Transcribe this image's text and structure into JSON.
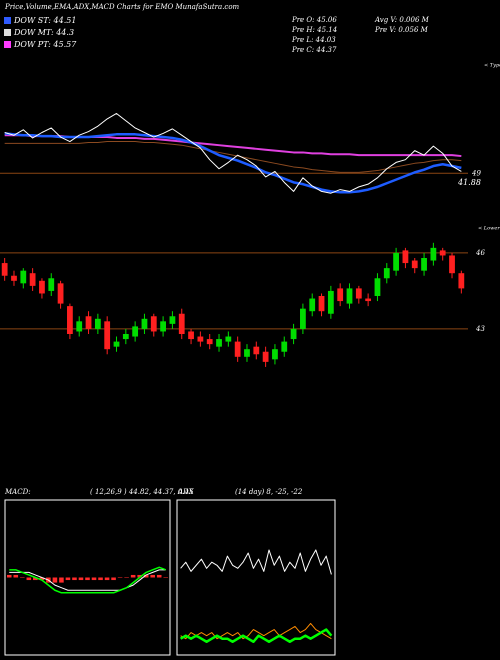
{
  "header": {
    "title": "Price,Volume,EMA,ADX,MACD Charts for EMO MunafaSutra.com",
    "legend": [
      {
        "label": "DOW ST: 44.51",
        "color": "#2f5bff"
      },
      {
        "label": "DOW MT: 44.3",
        "color": "#dddddd"
      },
      {
        "label": "DOW PT: 45.57",
        "color": "#ff3cff"
      }
    ],
    "stats": [
      "Pre O: 45.06",
      "Avg V: 0.006  M",
      "Pre H: 45.14",
      "Pre V: 0.056  M",
      "Pre L: 44.03",
      "Pre C: 44.37"
    ]
  },
  "chart_data": [
    {
      "type": "line",
      "label": "< Type",
      "annotation": "41.88",
      "ylim": [
        45.5,
        61.5
      ],
      "yticks": [
        49
      ],
      "grid": true,
      "grid_color": "#8b4513",
      "series": [
        {
          "color": "#8b4a20",
          "width": 1,
          "values": [
            52.3,
            52.3,
            52.3,
            52.3,
            52.3,
            52.3,
            52.3,
            52.3,
            52.3,
            52.4,
            52.4,
            52.5,
            52.5,
            52.5,
            52.5,
            52.4,
            52.4,
            52.3,
            52.2,
            52.1,
            51.9,
            51.7,
            51.5,
            51.3,
            51.1,
            50.9,
            50.7,
            50.5,
            50.3,
            50.1,
            49.9,
            49.7,
            49.6,
            49.4,
            49.3,
            49.2,
            49.1,
            49.1,
            49.1,
            49.2,
            49.3,
            49.5,
            49.7,
            49.9,
            50.1,
            50.2,
            50.4,
            50.5,
            50.5,
            50.4
          ]
        },
        {
          "color": "#e040e0",
          "width": 2,
          "values": [
            53.2,
            53.2,
            53.2,
            53.1,
            53.1,
            53.1,
            53.1,
            53.0,
            53.0,
            53.0,
            53.0,
            53.0,
            52.9,
            52.9,
            52.9,
            52.8,
            52.8,
            52.7,
            52.6,
            52.5,
            52.4,
            52.3,
            52.2,
            52.1,
            52.0,
            51.9,
            51.8,
            51.7,
            51.6,
            51.5,
            51.4,
            51.3,
            51.3,
            51.2,
            51.2,
            51.1,
            51.1,
            51.1,
            51.0,
            51.0,
            51.0,
            51.0,
            51.0,
            51.0,
            51.0,
            51.0,
            51.0,
            51.0,
            51.0,
            50.9
          ]
        },
        {
          "color": "#1e5cff",
          "width": 2.5,
          "values": [
            53.4,
            53.3,
            53.2,
            53.2,
            53.1,
            53.1,
            53.0,
            53.0,
            53.0,
            53.0,
            53.1,
            53.2,
            53.3,
            53.3,
            53.3,
            53.2,
            53.1,
            53.0,
            52.9,
            52.7,
            52.4,
            52.0,
            51.5,
            51.0,
            50.7,
            50.4,
            50.0,
            49.6,
            49.1,
            48.8,
            48.4,
            48.0,
            47.8,
            47.5,
            47.2,
            47.0,
            46.9,
            46.9,
            47.0,
            47.2,
            47.5,
            47.9,
            48.3,
            48.7,
            49.1,
            49.4,
            49.8,
            50.0,
            49.8,
            49.6
          ]
        },
        {
          "color": "#ffffff",
          "width": 1,
          "values": [
            53.5,
            53.2,
            53.8,
            52.9,
            53.5,
            54.0,
            53.0,
            52.5,
            53.2,
            53.6,
            54.2,
            55.0,
            55.6,
            54.8,
            54.0,
            53.5,
            53.0,
            53.4,
            53.9,
            53.2,
            52.5,
            51.8,
            50.5,
            49.5,
            50.2,
            51.0,
            50.5,
            49.8,
            48.6,
            49.2,
            48.0,
            47.0,
            48.5,
            47.6,
            47.0,
            46.8,
            47.2,
            47.0,
            47.5,
            47.8,
            48.5,
            49.5,
            50.2,
            50.5,
            51.5,
            51.0,
            52.0,
            51.2,
            49.8,
            49.2
          ]
        }
      ]
    },
    {
      "type": "candlestick",
      "label": "< Lower",
      "ylim": [
        39.8,
        47.3
      ],
      "yticks": [
        46,
        43
      ],
      "grid": true,
      "grid_color": "#8b4513",
      "up_color": "#00dd00",
      "down_color": "#ff2020",
      "open": [
        45.6,
        45.1,
        44.8,
        45.2,
        44.9,
        44.5,
        44.8,
        43.9,
        42.9,
        43.5,
        43.0,
        43.3,
        42.3,
        42.6,
        42.7,
        43.0,
        43.5,
        42.9,
        43.2,
        43.6,
        42.9,
        42.7,
        42.6,
        42.3,
        42.5,
        42.5,
        41.9,
        42.3,
        42.1,
        41.8,
        42.1,
        42.6,
        43.0,
        43.7,
        44.3,
        43.6,
        44.6,
        44.0,
        44.6,
        44.2,
        44.3,
        45.0,
        45.3,
        46.1,
        45.7,
        45.3,
        45.7,
        46.1,
        45.9,
        45.2
      ],
      "high": [
        45.8,
        45.3,
        45.4,
        45.4,
        45.0,
        45.2,
        44.9,
        44.0,
        43.5,
        43.7,
        43.6,
        43.5,
        42.7,
        43.0,
        43.3,
        43.6,
        43.6,
        43.5,
        43.7,
        43.8,
        43.0,
        42.9,
        42.8,
        42.8,
        42.9,
        42.7,
        42.4,
        42.5,
        42.3,
        42.4,
        42.7,
        43.2,
        44.0,
        44.4,
        44.4,
        44.7,
        44.8,
        44.8,
        44.7,
        44.4,
        45.2,
        45.6,
        46.2,
        46.2,
        45.8,
        46.0,
        46.4,
        46.2,
        46.0,
        45.3
      ],
      "low": [
        44.9,
        44.7,
        44.6,
        44.5,
        44.2,
        44.3,
        43.8,
        42.6,
        42.7,
        42.8,
        42.8,
        42.0,
        42.1,
        42.4,
        42.5,
        42.8,
        42.7,
        42.7,
        43.0,
        42.6,
        42.4,
        42.3,
        42.2,
        42.1,
        42.3,
        41.7,
        41.7,
        41.8,
        41.5,
        41.6,
        41.9,
        42.4,
        42.8,
        43.5,
        43.5,
        43.4,
        43.9,
        43.8,
        44.0,
        43.9,
        44.1,
        44.8,
        45.1,
        45.4,
        45.2,
        45.1,
        45.5,
        45.7,
        45.0,
        44.4
      ],
      "close": [
        45.1,
        44.9,
        45.3,
        44.7,
        44.4,
        45.0,
        44.0,
        42.8,
        43.3,
        43.0,
        43.4,
        42.2,
        42.5,
        42.8,
        43.1,
        43.4,
        42.9,
        43.3,
        43.5,
        42.8,
        42.6,
        42.5,
        42.4,
        42.6,
        42.7,
        41.9,
        42.2,
        42.0,
        41.7,
        42.2,
        42.5,
        43.0,
        43.8,
        44.2,
        43.7,
        44.5,
        44.1,
        44.6,
        44.2,
        44.1,
        45.0,
        45.4,
        46.0,
        45.6,
        45.4,
        45.8,
        46.2,
        45.9,
        45.2,
        44.6
      ]
    },
    {
      "type": "line",
      "title": "MACD:",
      "subtitle": "( 12,26,9 ) 44.82, 44.37, 0.45",
      "ylim": [
        -3,
        3
      ],
      "histogram": {
        "color": "#ff2a2a",
        "values": [
          0.1,
          0.1,
          0,
          -0.1,
          -0.1,
          -0.1,
          -0.2,
          -0.2,
          -0.2,
          -0.1,
          -0.1,
          -0.1,
          -0.1,
          -0.1,
          -0.1,
          -0.1,
          -0.1,
          0,
          0,
          0.1,
          0.1,
          0.1,
          0.1,
          0.1,
          0
        ]
      },
      "series": [
        {
          "color": "#ffffff",
          "width": 1,
          "values": [
            0.2,
            0.2,
            0.2,
            0.2,
            0.1,
            0.0,
            -0.1,
            -0.3,
            -0.4,
            -0.5,
            -0.5,
            -0.5,
            -0.5,
            -0.5,
            -0.5,
            -0.5,
            -0.5,
            -0.5,
            -0.4,
            -0.3,
            -0.1,
            0.1,
            0.2,
            0.3,
            0.3
          ]
        },
        {
          "color": "#00ff00",
          "width": 1.5,
          "values": [
            0.3,
            0.3,
            0.2,
            0.1,
            0,
            -0.1,
            -0.3,
            -0.5,
            -0.6,
            -0.6,
            -0.6,
            -0.6,
            -0.6,
            -0.6,
            -0.6,
            -0.6,
            -0.6,
            -0.5,
            -0.4,
            -0.2,
            0,
            0.2,
            0.3,
            0.4,
            0.3
          ]
        }
      ]
    },
    {
      "type": "line",
      "title": "ADX",
      "subtitle": "(14 day) 8, -25, -22",
      "ylim": [
        0,
        50
      ],
      "series": [
        {
          "color": "#ffffff",
          "width": 1,
          "values": [
            28,
            30,
            27,
            29,
            31,
            28,
            30,
            29,
            27,
            32,
            29,
            28,
            30,
            33,
            28,
            31,
            27,
            34,
            29,
            32,
            27,
            30,
            28,
            33,
            27,
            31,
            34,
            29,
            32,
            26
          ]
        },
        {
          "color": "#ff8c00",
          "width": 1,
          "values": [
            6,
            5,
            7,
            6,
            7,
            6,
            7,
            5,
            6,
            7,
            6,
            7,
            5,
            6,
            8,
            7,
            6,
            7,
            8,
            6,
            7,
            8,
            9,
            7,
            8,
            10,
            8,
            7,
            6,
            5
          ]
        },
        {
          "color": "#00ff00",
          "width": 2.5,
          "values": [
            5,
            6,
            5,
            6,
            5,
            4,
            5,
            6,
            5,
            5,
            4,
            5,
            6,
            5,
            4,
            6,
            5,
            4,
            5,
            6,
            5,
            4,
            5,
            5,
            6,
            5,
            6,
            7,
            8,
            6
          ]
        }
      ]
    }
  ]
}
